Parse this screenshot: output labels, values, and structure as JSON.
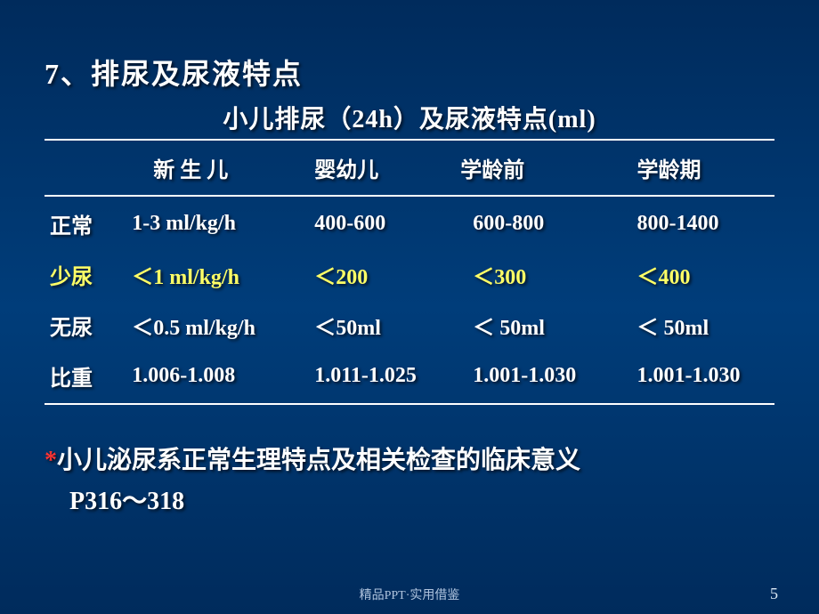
{
  "heading": "7、排尿及尿液特点",
  "subtitle": "小儿排尿（24h）及尿液特点(ml)",
  "columns": [
    "新 生 儿",
    "婴幼儿",
    "学龄前",
    "学龄期"
  ],
  "rows": [
    {
      "label": "正常",
      "cells": [
        "1-3 ml/kg/h",
        "400-600",
        "600-800",
        "800-1400"
      ],
      "highlight": false
    },
    {
      "label": "少尿",
      "cells": [
        "＜1 ml/kg/h",
        "＜200",
        "＜300",
        "＜400"
      ],
      "highlight": true
    },
    {
      "label": "无尿",
      "cells": [
        "＜0.5 ml/kg/h",
        "＜50ml",
        "＜ 50ml",
        "＜ 50ml"
      ],
      "highlight": false
    },
    {
      "label": "比重",
      "cells": [
        "1.006-1.008",
        "1.011-1.025",
        "1.001-1.030",
        "1.001-1.030"
      ],
      "highlight": false
    }
  ],
  "note": {
    "asterisk": "*",
    "line1": "小儿泌尿系正常生理特点及相关检查的临床意义",
    "line2": "P316～318"
  },
  "footer": "精品PPT·实用借鉴",
  "page": "5",
  "colors": {
    "highlight_row": "#ffff66",
    "asterisk": "#ff3333",
    "text": "#ffffff",
    "bg_top": "#002b5c",
    "bg_mid": "#003d7a"
  }
}
